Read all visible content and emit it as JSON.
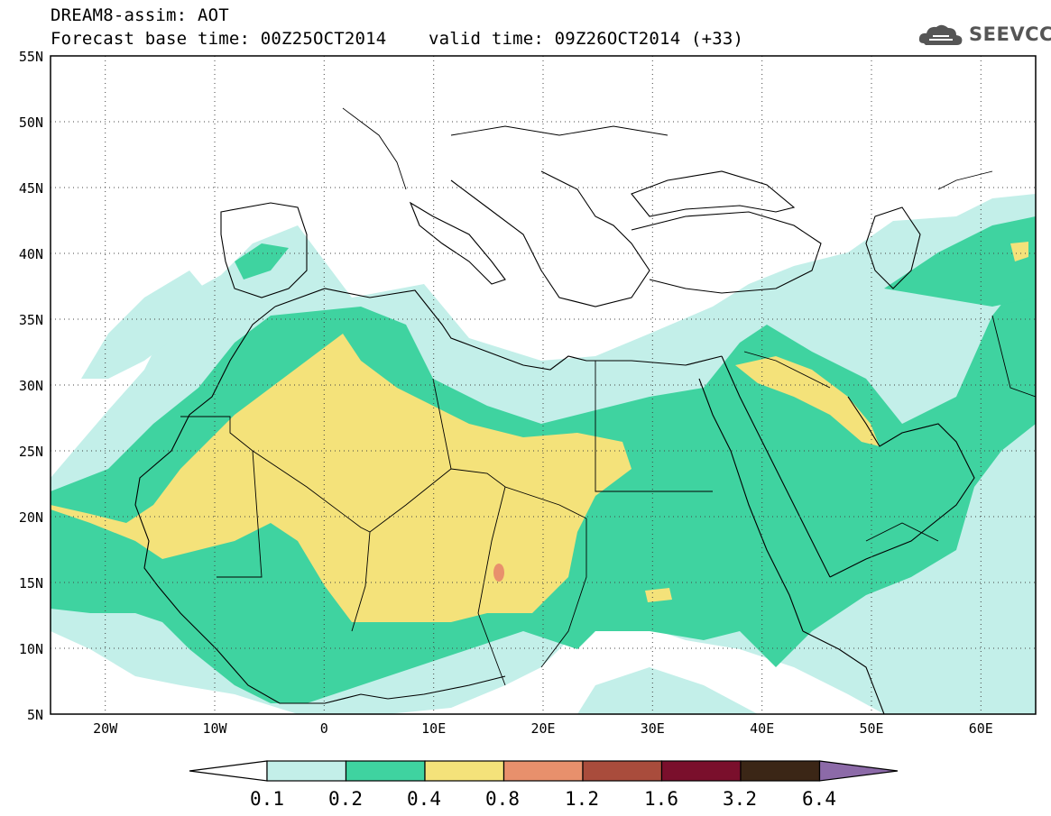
{
  "header": {
    "title": "DREAM8-assim: AOT",
    "subtitle": "Forecast base time: 00Z25OCT2014    valid time: 09Z26OCT2014 (+33)",
    "logo_text": "SEEVCCC"
  },
  "map": {
    "lon_range": [
      -25,
      65
    ],
    "lat_range": [
      5,
      55
    ],
    "lat_ticks": [
      "55N",
      "50N",
      "45N",
      "40N",
      "35N",
      "30N",
      "25N",
      "20N",
      "15N",
      "10N",
      "5N"
    ],
    "lon_ticks": [
      "20W",
      "10W",
      "0",
      "10E",
      "20E",
      "30E",
      "40E",
      "50E",
      "60E"
    ],
    "grid": "dotted"
  },
  "colorbar": {
    "labels": [
      "0.1",
      "0.2",
      "0.4",
      "0.8",
      "1.2",
      "1.6",
      "3.2",
      "6.4"
    ],
    "colors": [
      "#ffffff",
      "#c3efe9",
      "#3fd3a0",
      "#f4e27a",
      "#e8906c",
      "#a94c3c",
      "#7a0f2c",
      "#3b2616",
      "#8c6aa8"
    ]
  }
}
